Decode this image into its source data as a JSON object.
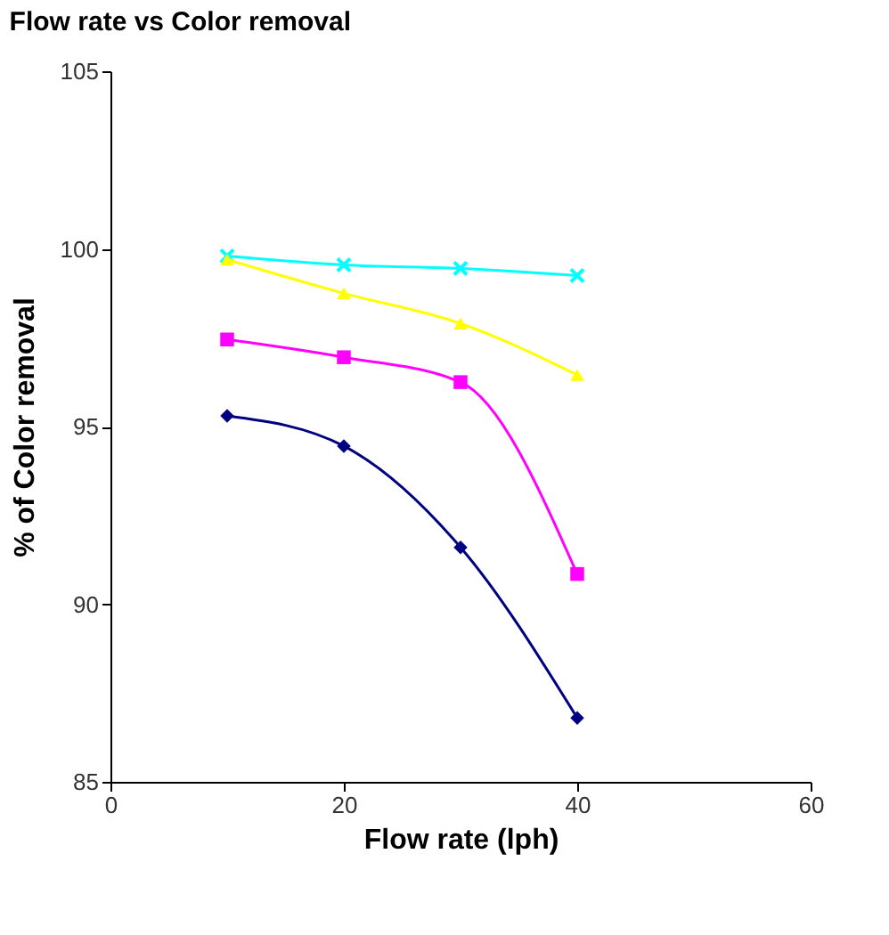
{
  "chart_data": {
    "type": "line",
    "title": "Flow rate vs Color removal",
    "xlabel": "Flow rate (lph)",
    "ylabel": "% of Color removal",
    "x": [
      10,
      20,
      30,
      40
    ],
    "series": [
      {
        "color": "#00ffff",
        "marker": "cross",
        "values": [
          99.8,
          99.55,
          99.45,
          99.25
        ]
      },
      {
        "color": "#ffff00",
        "marker": "triangle",
        "values": [
          99.7,
          98.75,
          97.9,
          96.45
        ]
      },
      {
        "color": "#ff00ff",
        "marker": "square",
        "values": [
          97.45,
          96.95,
          96.25,
          90.85
        ]
      },
      {
        "color": "#000080",
        "marker": "diamond",
        "values": [
          95.3,
          94.45,
          91.6,
          86.8
        ]
      }
    ],
    "xlim": [
      0,
      60
    ],
    "xticks": [
      0,
      20,
      40,
      60
    ],
    "ylim": [
      85,
      105
    ],
    "yticks": [
      85,
      90,
      95,
      100,
      105
    ],
    "grid": false
  }
}
